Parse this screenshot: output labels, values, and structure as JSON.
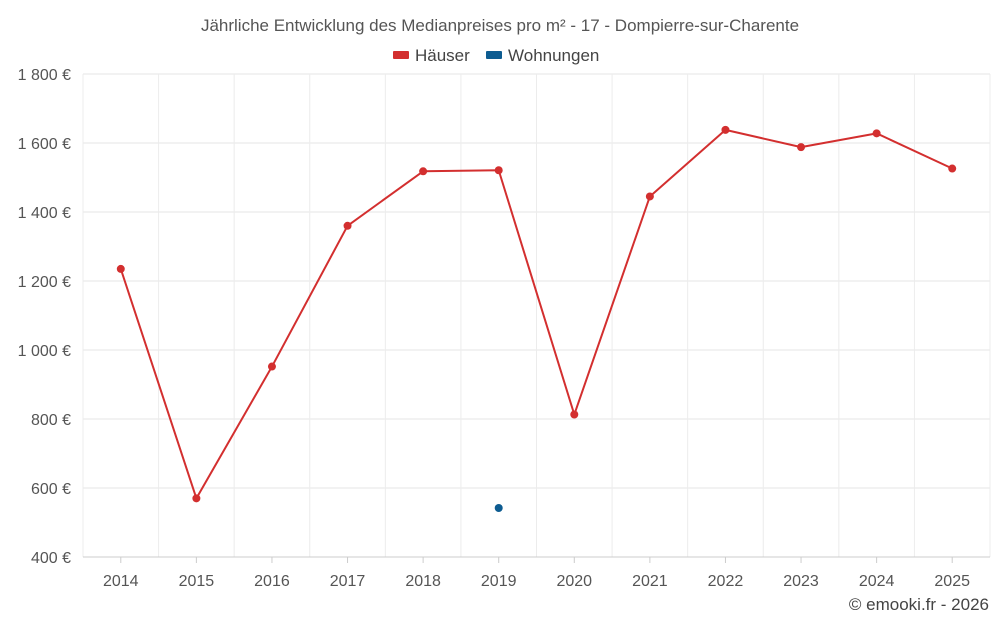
{
  "chart_data": {
    "type": "line",
    "title": "Jährliche Entwicklung des Medianpreises pro m² - 17 - Dompierre-sur-Charente",
    "categories": [
      "2014",
      "2015",
      "2016",
      "2017",
      "2018",
      "2019",
      "2020",
      "2021",
      "2022",
      "2023",
      "2024",
      "2025"
    ],
    "series": [
      {
        "name": "Häuser",
        "color": "#d32f2f",
        "values": [
          1235,
          570,
          952,
          1360,
          1518,
          1521,
          813,
          1445,
          1638,
          1588,
          1628,
          1526
        ]
      },
      {
        "name": "Wohnungen",
        "color": "#0d5c91",
        "values": [
          null,
          null,
          null,
          null,
          null,
          542,
          null,
          null,
          null,
          null,
          null,
          null
        ]
      }
    ],
    "ylim": [
      400,
      1800
    ],
    "yticks": [
      400,
      600,
      800,
      1000,
      1200,
      1400,
      1600,
      1800
    ],
    "ytick_labels": [
      "400 €",
      "600 €",
      "800 €",
      "1 000 €",
      "1 200 €",
      "1 400 €",
      "1 600 €",
      "1 800 €"
    ],
    "xlabel": "",
    "ylabel": "",
    "grid": true,
    "legend_position": "top-center"
  },
  "credit": "© emooki.fr - 2026"
}
